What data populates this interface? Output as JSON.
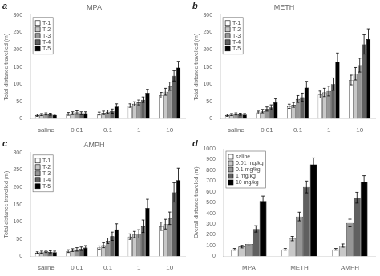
{
  "chart_data": [
    {
      "type": "bar",
      "title": "MPA",
      "annotations": [
        "a"
      ],
      "categories": [
        "saline",
        "0.01",
        "0.1",
        "1",
        "10"
      ],
      "ylabel": "Total distance travelled (m)",
      "series": [
        {
          "name": "T-1",
          "color": "#ffffff",
          "values": [
            10,
            14,
            15,
            38,
            68
          ],
          "errors": [
            3,
            4,
            4,
            5,
            8
          ]
        },
        {
          "name": "T-2",
          "color": "#c8c8c8",
          "values": [
            12,
            16,
            17,
            43,
            78
          ],
          "errors": [
            3,
            4,
            5,
            6,
            10
          ]
        },
        {
          "name": "T-3",
          "color": "#969696",
          "values": [
            14,
            18,
            20,
            47,
            94
          ],
          "errors": [
            3,
            5,
            5,
            7,
            12
          ]
        },
        {
          "name": "T-4",
          "color": "#606060",
          "values": [
            13,
            16,
            22,
            55,
            124
          ],
          "errors": [
            3,
            4,
            6,
            8,
            15
          ]
        },
        {
          "name": "T-5",
          "color": "#000000",
          "values": [
            11,
            16,
            35,
            75,
            148
          ],
          "errors": [
            2,
            4,
            8,
            10,
            18
          ]
        }
      ],
      "ylim": [
        0,
        300
      ],
      "yticks": [
        0,
        50,
        100,
        150,
        200,
        250,
        300
      ],
      "grid": false,
      "legend": "upper left"
    },
    {
      "type": "bar",
      "title": "METH",
      "annotations": [
        "b"
      ],
      "categories": [
        "saline",
        "0.01",
        "0.1",
        "1",
        "10"
      ],
      "ylabel": "Total distance travelled (m)",
      "series": [
        {
          "name": "T-1",
          "color": "#ffffff",
          "values": [
            10,
            18,
            36,
            70,
            112
          ],
          "errors": [
            3,
            4,
            6,
            10,
            14
          ]
        },
        {
          "name": "T-2",
          "color": "#c8c8c8",
          "values": [
            12,
            22,
            40,
            76,
            130
          ],
          "errors": [
            3,
            5,
            7,
            12,
            18
          ]
        },
        {
          "name": "T-3",
          "color": "#969696",
          "values": [
            14,
            28,
            57,
            80,
            155
          ],
          "errors": [
            3,
            6,
            10,
            14,
            20
          ]
        },
        {
          "name": "T-4",
          "color": "#606060",
          "values": [
            13,
            33,
            62,
            100,
            215
          ],
          "errors": [
            3,
            7,
            12,
            18,
            28
          ]
        },
        {
          "name": "T-5",
          "color": "#000000",
          "values": [
            12,
            48,
            90,
            165,
            230
          ],
          "errors": [
            3,
            10,
            18,
            25,
            30
          ]
        }
      ],
      "ylim": [
        0,
        300
      ],
      "yticks": [
        0,
        50,
        100,
        150,
        200,
        250,
        300
      ],
      "grid": false,
      "legend": "upper left"
    },
    {
      "type": "bar",
      "title": "AMPH",
      "annotations": [
        "c"
      ],
      "categories": [
        "saline",
        "0.01",
        "0.1",
        "1",
        "10"
      ],
      "ylabel": "Total distance travelled (m)",
      "series": [
        {
          "name": "T-1",
          "color": "#ffffff",
          "values": [
            10,
            15,
            25,
            57,
            87
          ],
          "errors": [
            3,
            4,
            5,
            8,
            12
          ]
        },
        {
          "name": "T-2",
          "color": "#c8c8c8",
          "values": [
            12,
            18,
            32,
            63,
            93
          ],
          "errors": [
            3,
            4,
            7,
            9,
            14
          ]
        },
        {
          "name": "T-3",
          "color": "#969696",
          "values": [
            14,
            20,
            45,
            65,
            110
          ],
          "errors": [
            3,
            5,
            8,
            12,
            18
          ]
        },
        {
          "name": "T-4",
          "color": "#606060",
          "values": [
            13,
            22,
            58,
            87,
            185
          ],
          "errors": [
            3,
            5,
            12,
            18,
            28
          ]
        },
        {
          "name": "T-5",
          "color": "#000000",
          "values": [
            12,
            25,
            78,
            140,
            220
          ],
          "errors": [
            3,
            6,
            16,
            25,
            35
          ]
        }
      ],
      "ylim": [
        0,
        300
      ],
      "yticks": [
        0,
        50,
        100,
        150,
        200,
        250,
        300
      ],
      "grid": false,
      "legend": "upper left"
    },
    {
      "type": "bar",
      "annotations": [
        "d"
      ],
      "categories": [
        "MPA",
        "METH",
        "AMPH"
      ],
      "ylabel": "Overall distance traveled (m)",
      "series": [
        {
          "name": "saline",
          "color": "#ffffff",
          "values": [
            65,
            65,
            65
          ],
          "errors": [
            8,
            8,
            8
          ]
        },
        {
          "name": "0.01 mg/kg",
          "color": "#c8c8c8",
          "values": [
            90,
            165,
            100
          ],
          "errors": [
            12,
            20,
            15
          ]
        },
        {
          "name": "0.1 mg/kg",
          "color": "#969696",
          "values": [
            115,
            370,
            310
          ],
          "errors": [
            18,
            40,
            35
          ]
        },
        {
          "name": "1 mg/kg",
          "color": "#606060",
          "values": [
            255,
            645,
            545
          ],
          "errors": [
            30,
            55,
            50
          ]
        },
        {
          "name": "10 mg/kg",
          "color": "#000000",
          "values": [
            515,
            855,
            695
          ],
          "errors": [
            45,
            60,
            55
          ]
        }
      ],
      "ylim": [
        0,
        1000
      ],
      "yticks": [
        0,
        100,
        200,
        300,
        400,
        500,
        600,
        700,
        800,
        900,
        1000
      ],
      "grid": false,
      "legend": "upper left"
    }
  ]
}
